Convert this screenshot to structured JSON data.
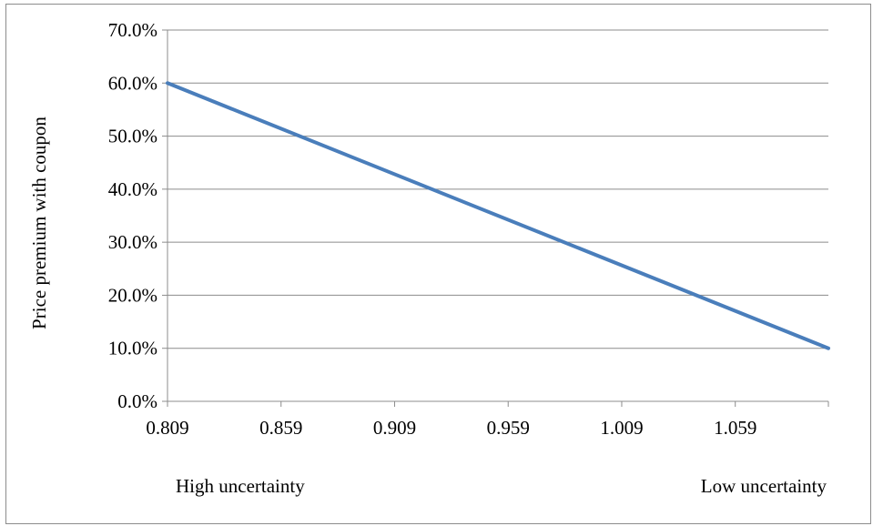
{
  "chart_data": {
    "type": "line",
    "title": "",
    "ylabel": "Price premium with coupon",
    "xlabel": "",
    "x_annotations": {
      "left": "High uncertainty",
      "right": "Low uncertainty"
    },
    "xlim": [
      0.809,
      1.1
    ],
    "ylim": [
      0,
      0.7
    ],
    "x_ticks": [
      0.809,
      0.859,
      0.909,
      0.959,
      1.009,
      1.059
    ],
    "x_tick_labels": [
      "0.809",
      "0.859",
      "0.909",
      "0.959",
      "1.009",
      "1.059"
    ],
    "y_ticks": [
      0,
      0.1,
      0.2,
      0.3,
      0.4,
      0.5,
      0.6,
      0.7
    ],
    "y_tick_labels": [
      "0.0%",
      "10.0%",
      "20.0%",
      "30.0%",
      "40.0%",
      "50.0%",
      "60.0%",
      "70.0%"
    ],
    "grid": "horizontal",
    "legend": "none",
    "series": [
      {
        "color": "#4a7ebb",
        "x": [
          0.809,
          1.1
        ],
        "y": [
          0.6,
          0.1
        ]
      }
    ],
    "colors": {
      "line": "#4a7ebb",
      "grid": "#8c8c8c",
      "axis": "#8c8c8c"
    }
  }
}
